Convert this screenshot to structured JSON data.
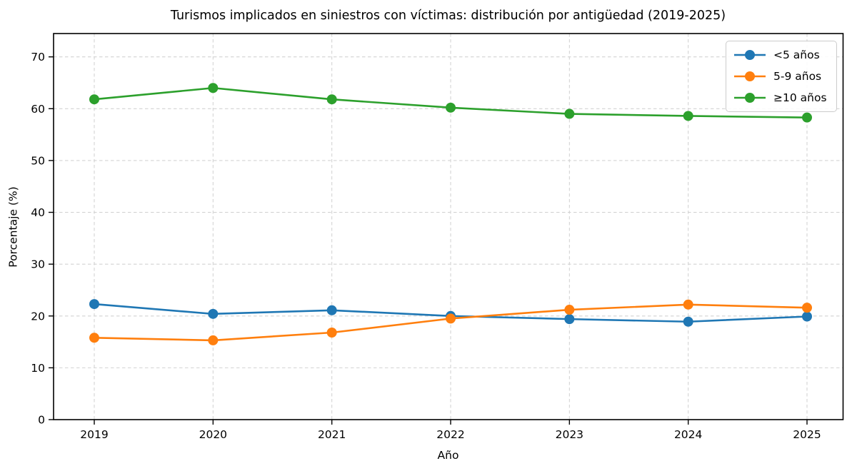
{
  "chart_data": {
    "type": "line",
    "title": "Turismos implicados en siniestros con víctimas: distribución por antigüedad (2019-2025)",
    "xlabel": "Año",
    "ylabel": "Porcentaje (%)",
    "x": [
      2019,
      2020,
      2021,
      2022,
      2023,
      2024,
      2025
    ],
    "yticks": [
      0,
      10,
      20,
      30,
      40,
      50,
      60,
      70
    ],
    "ylim": [
      0,
      74.5
    ],
    "grid": true,
    "grid_style": "dashed",
    "legend_position": "upper right",
    "series": [
      {
        "name": "<5 años",
        "color": "#1f77b4",
        "values": [
          22.3,
          20.4,
          21.1,
          20.0,
          19.4,
          18.9,
          19.9
        ]
      },
      {
        "name": "5-9 años",
        "color": "#ff7f0e",
        "values": [
          15.8,
          15.3,
          16.8,
          19.5,
          21.2,
          22.2,
          21.6
        ]
      },
      {
        "name": "≥10 años",
        "color": "#2ca02c",
        "values": [
          61.8,
          64.0,
          61.8,
          60.2,
          59.0,
          58.6,
          58.3
        ]
      }
    ]
  }
}
